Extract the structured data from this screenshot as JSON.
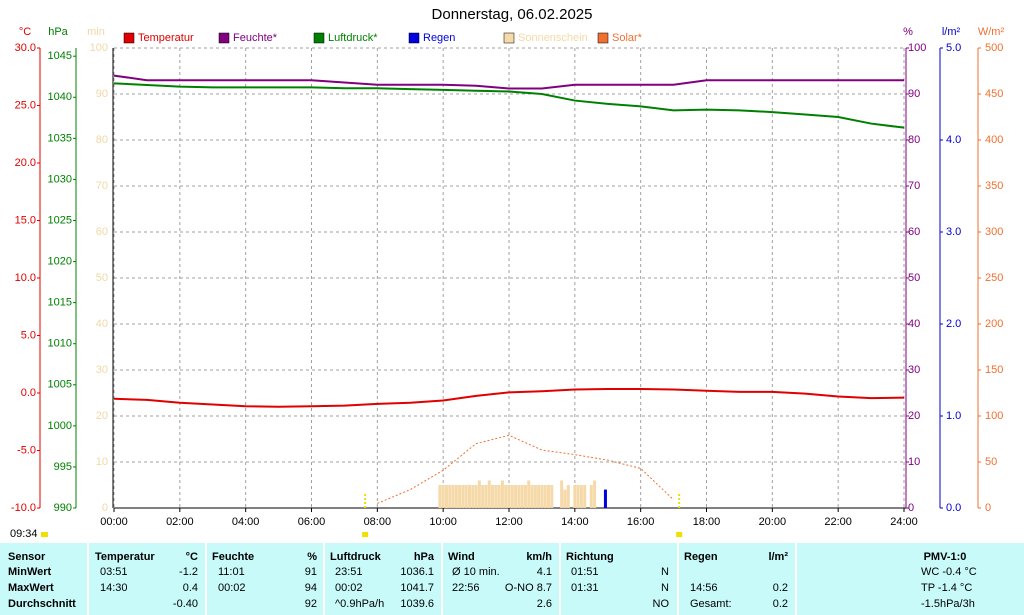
{
  "chart_data": {
    "type": "line",
    "title": "Donnerstag, 06.02.2025",
    "time": "09:34",
    "x": [
      0,
      1,
      2,
      3,
      4,
      5,
      6,
      7,
      8,
      9,
      10,
      11,
      12,
      13,
      14,
      15,
      16,
      17,
      18,
      19,
      20,
      21,
      22,
      23,
      24
    ],
    "xlim": [
      0,
      24
    ],
    "xticks": [
      {
        "value": 0,
        "label": "00:00"
      },
      {
        "value": 2,
        "label": "02:00"
      },
      {
        "value": 4,
        "label": "04:00"
      },
      {
        "value": 6,
        "label": "06:00"
      },
      {
        "value": 8,
        "label": "08:00"
      },
      {
        "value": 10,
        "label": "10:00"
      },
      {
        "value": 12,
        "label": "12:00"
      },
      {
        "value": 14,
        "label": "14:00"
      },
      {
        "value": 16,
        "label": "16:00"
      },
      {
        "value": 18,
        "label": "18:00"
      },
      {
        "value": 20,
        "label": "20:00"
      },
      {
        "value": 22,
        "label": "22:00"
      },
      {
        "value": 24,
        "label": "24:00"
      }
    ],
    "grid": true,
    "sun_markers": [
      7.63,
      17.17
    ],
    "axes": [
      {
        "unit": "°C",
        "color": "#e00000",
        "ylim": [
          -10,
          30
        ],
        "yticks": [
          {
            "value": 30,
            "label": "30.0"
          },
          {
            "value": 25,
            "label": "25.0"
          },
          {
            "value": 20,
            "label": "20.0"
          },
          {
            "value": 15,
            "label": "15.0"
          },
          {
            "value": 10,
            "label": "10.0"
          },
          {
            "value": 5,
            "label": "5.0"
          },
          {
            "value": 0,
            "label": "0.0"
          },
          {
            "value": -5,
            "label": "-5.0"
          },
          {
            "value": -10,
            "label": "-10.0"
          }
        ]
      },
      {
        "unit": "hPa",
        "color": "#008000",
        "ylim": [
          990,
          1046
        ],
        "yticks": [
          1045,
          1040,
          1035,
          1030,
          1025,
          1020,
          1015,
          1010,
          1005,
          1000,
          995,
          990
        ]
      },
      {
        "unit": "min",
        "color": "#f0d8a8",
        "ylim": [
          0,
          100
        ],
        "yticks": [
          100,
          90,
          80,
          70,
          60,
          50,
          40,
          30,
          20,
          10,
          0
        ]
      },
      {
        "unit": "%",
        "color": "#800080",
        "ylim": [
          0,
          100
        ],
        "yticks": [
          100,
          90,
          80,
          70,
          60,
          50,
          40,
          30,
          20,
          10,
          0
        ]
      },
      {
        "unit": "l/m²",
        "color": "#0000d0",
        "ylim": [
          0,
          5
        ],
        "yticks": [
          {
            "value": 5,
            "label": "5.0"
          },
          {
            "value": 4,
            "label": "4.0"
          },
          {
            "value": 3,
            "label": "3.0"
          },
          {
            "value": 2,
            "label": "2.0"
          },
          {
            "value": 1,
            "label": "1.0"
          },
          {
            "value": 0,
            "label": "0.0"
          }
        ]
      },
      {
        "unit": "W/m²",
        "color": "#f07030",
        "ylim": [
          0,
          500
        ],
        "yticks": [
          500,
          450,
          400,
          350,
          300,
          250,
          200,
          150,
          100,
          50,
          0
        ]
      }
    ],
    "series": [
      {
        "name": "Temperatur",
        "color": "#e00000",
        "axis": 0,
        "kind": "line",
        "values": [
          -0.5,
          -0.6,
          -0.85,
          -1.0,
          -1.15,
          -1.2,
          -1.15,
          -1.1,
          -0.95,
          -0.85,
          -0.65,
          -0.25,
          0.05,
          0.15,
          0.3,
          0.35,
          0.35,
          0.3,
          0.2,
          0.1,
          0.1,
          -0.05,
          -0.3,
          -0.45,
          -0.4
        ]
      },
      {
        "name": "Feuchte*",
        "color": "#800080",
        "axis": 3,
        "kind": "line",
        "values": [
          94,
          93,
          93,
          93,
          93,
          93,
          93,
          92.5,
          92,
          92,
          92,
          91.8,
          91.2,
          91.2,
          92,
          92,
          92,
          92,
          93,
          93,
          93,
          93,
          93,
          93,
          93
        ]
      },
      {
        "name": "Luftdruck*",
        "color": "#008000",
        "axis": 1,
        "kind": "line",
        "values": [
          1041.7,
          1041.5,
          1041.3,
          1041.2,
          1041.2,
          1041.2,
          1041.2,
          1041.1,
          1041.1,
          1041.0,
          1040.9,
          1040.8,
          1040.7,
          1040.4,
          1039.6,
          1039.2,
          1038.9,
          1038.4,
          1038.5,
          1038.4,
          1038.2,
          1037.9,
          1037.6,
          1036.8,
          1036.3
        ]
      },
      {
        "name": "Regen",
        "color": "#0000e0",
        "axis": 4,
        "kind": "bar",
        "x": [
          14.93
        ],
        "values": [
          0.2
        ]
      },
      {
        "name": "Sonnenschein",
        "color": "#f5d9a8",
        "axis": 2,
        "kind": "bar",
        "x": [
          9.9,
          10,
          10.1,
          10.2,
          10.3,
          10.4,
          10.5,
          10.6,
          10.7,
          10.8,
          10.9,
          11,
          11.1,
          11.2,
          11.3,
          11.4,
          11.5,
          11.6,
          11.7,
          11.8,
          11.9,
          12,
          12.1,
          12.2,
          12.3,
          12.4,
          12.5,
          12.6,
          12.7,
          12.8,
          12.9,
          13,
          13.1,
          13.2,
          13.3,
          13.6,
          13.7,
          13.8,
          14,
          14.1,
          14.2,
          14.3,
          14.5,
          14.6
        ],
        "values": [
          5,
          5,
          5,
          5,
          5,
          5,
          5,
          5,
          5,
          5,
          5,
          5,
          6,
          5,
          5,
          6,
          5,
          5,
          5,
          6,
          5,
          5,
          5,
          5,
          5,
          5,
          5,
          6,
          5,
          5,
          5,
          5,
          5,
          5,
          5,
          6,
          4,
          5,
          5,
          5,
          5,
          5,
          5,
          6
        ]
      },
      {
        "name": "Solar*",
        "color": "#f07030",
        "axis": 5,
        "kind": "dashed",
        "values": [
          null,
          null,
          null,
          null,
          null,
          null,
          null,
          null,
          5,
          20,
          41,
          70,
          79,
          63,
          58,
          52,
          43,
          9,
          null,
          null,
          null,
          null,
          null,
          null,
          null
        ]
      }
    ]
  },
  "table": {
    "rows": [
      [
        "Sensor",
        "Temperatur",
        "°C",
        "Feuchte",
        "%",
        "Luftdruck",
        "hPa",
        "Wind",
        "km/h",
        "Richtung",
        null,
        "Regen",
        "l/m²",
        "PMV-1:0"
      ],
      [
        "MinWert",
        "03:51",
        "-1.2",
        "11:01",
        "91",
        "23:51",
        "1036.1",
        "Ø 10 min.",
        "4.1",
        "01:51",
        "N",
        null,
        null,
        "WC -0.4 °C"
      ],
      [
        "MaxWert",
        "14:30",
        "0.4",
        "00:02",
        "94",
        "00:02",
        "1041.7",
        "22:56",
        "O-NO 8.7",
        "01:31",
        "N",
        "14:56",
        "0.2",
        "TP -1.4 °C"
      ],
      [
        "Durchschnitt",
        null,
        "-0.40",
        null,
        "92",
        "^0.9hPa/h",
        "1039.6",
        null,
        "2.6",
        null,
        "NO",
        "Gesamt:",
        "0.2",
        "-1.5hPa/3h"
      ]
    ]
  }
}
